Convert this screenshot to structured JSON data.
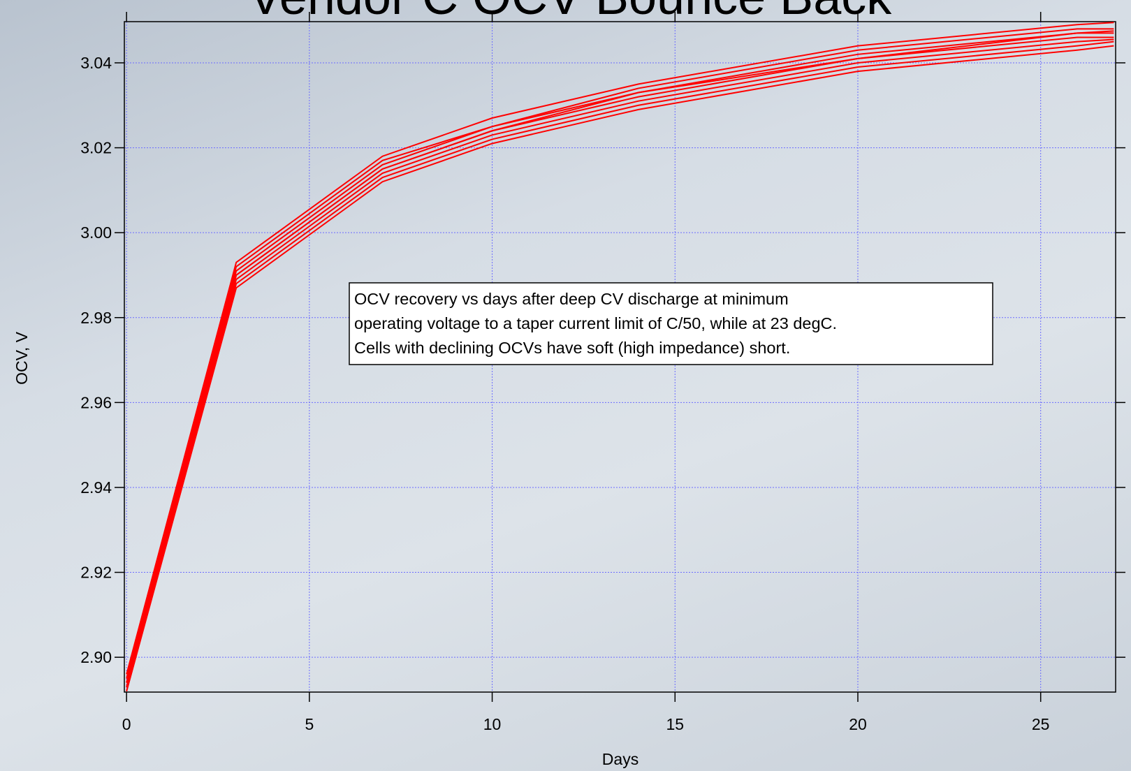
{
  "chart_data": {
    "type": "line",
    "title": "Vendor C OCV Bounce Back",
    "x_label": "Days",
    "y_label": "OCV, V",
    "annotation": [
      "OCV recovery vs days after deep CV discharge at minimum",
      "operating voltage to a taper current limit of C/50, while at 23 degC.",
      "Cells with declining OCVs have soft (high impedance) short."
    ],
    "x": [
      0,
      3,
      7,
      10,
      14,
      20,
      26,
      27
    ],
    "series": [
      {
        "color": "#ff0000",
        "values": [
          2.896,
          2.993,
          3.018,
          3.027,
          3.035,
          3.044,
          3.049,
          3.0495
        ]
      },
      {
        "color": "#ff0000",
        "values": [
          2.895,
          2.992,
          3.017,
          3.025,
          3.034,
          3.043,
          3.048,
          3.048
        ]
      },
      {
        "color": "#ff0000",
        "values": [
          2.894,
          2.991,
          3.016,
          3.025,
          3.033,
          3.042,
          3.047,
          3.0475
        ]
      },
      {
        "color": "#ff0000",
        "values": [
          2.894,
          2.99,
          3.015,
          3.024,
          3.033,
          3.041,
          3.047,
          3.047
        ]
      },
      {
        "color": "#ff0000",
        "values": [
          2.893,
          2.99,
          3.015,
          3.024,
          3.032,
          3.041,
          3.046,
          3.046
        ]
      },
      {
        "color": "#ff0000",
        "values": [
          2.893,
          2.989,
          3.014,
          3.023,
          3.031,
          3.04,
          3.045,
          3.0455
        ]
      },
      {
        "color": "#ff0000",
        "values": [
          2.892,
          2.988,
          3.013,
          3.022,
          3.03,
          3.039,
          3.044,
          3.045
        ]
      },
      {
        "color": "#ff0000",
        "values": [
          2.892,
          2.987,
          3.012,
          3.021,
          3.029,
          3.038,
          3.043,
          3.044
        ]
      }
    ],
    "xlim": [
      -0.06,
      27.05
    ],
    "ylim": [
      2.8918,
      3.0497
    ],
    "xticks": [
      0,
      5,
      10,
      15,
      20,
      25
    ],
    "yticks": [
      {
        "value": 2.9,
        "label": "2.90"
      },
      2.92,
      2.94,
      2.96,
      2.98,
      {
        "value": 3.0,
        "label": "3.00"
      },
      3.02,
      3.04
    ],
    "grid": true
  }
}
